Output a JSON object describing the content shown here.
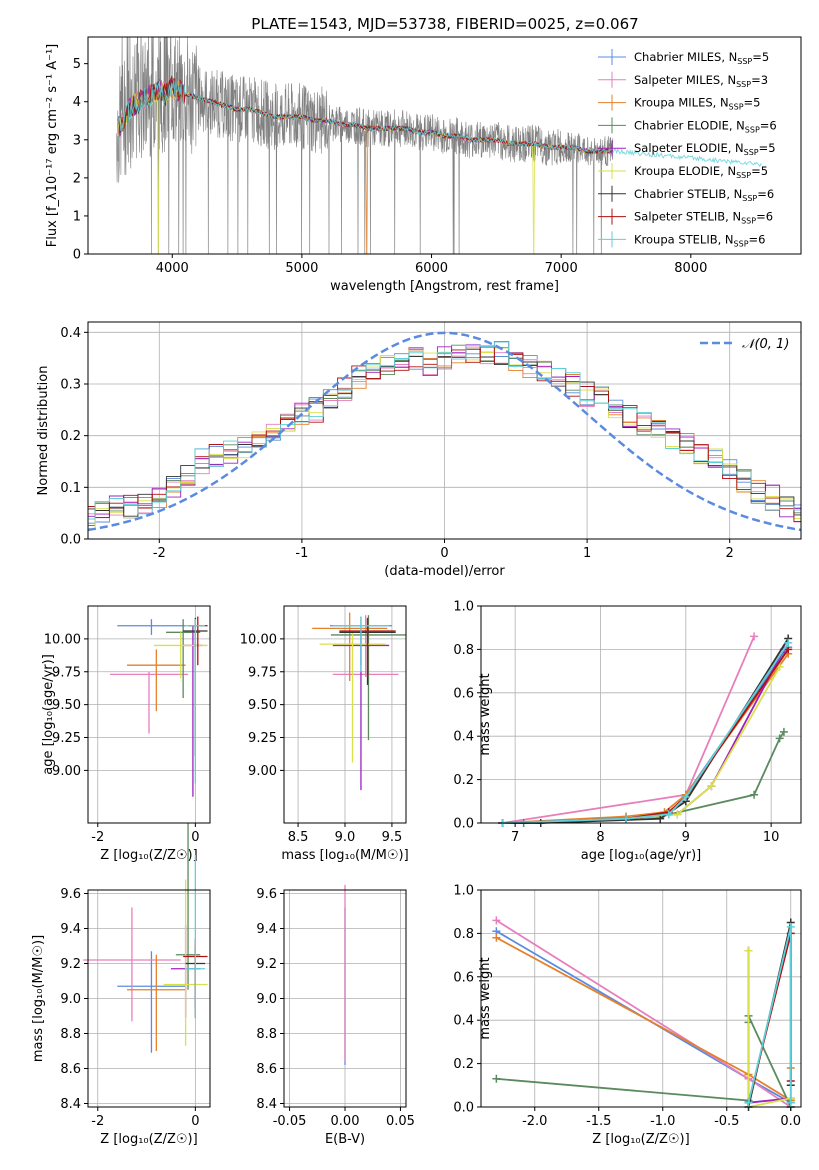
{
  "figure": {
    "title": "PLATE=1543, MJD=53738, FIBERID=0025, z=0.067"
  },
  "chart_data": [
    {
      "id": "spectrum",
      "type": "line",
      "title": "PLATE=1543, MJD=53738, FIBERID=0025, z=0.067",
      "xlabel": "wavelength [Angstrom, rest frame]",
      "ylabel": "Flux [f_λ10⁻¹⁷ erg cm⁻² s⁻¹ A⁻¹]",
      "xlim": [
        3350,
        8850
      ],
      "ylim": [
        0,
        5.7
      ],
      "xticks": [
        4000,
        5000,
        6000,
        7000,
        8000
      ],
      "yticks": [
        0,
        1,
        2,
        3,
        4,
        5
      ],
      "grid": false,
      "legend_position": "top-right",
      "observed": {
        "color": "#808080",
        "x": [
          3570,
          3600,
          3650,
          3700,
          3750,
          3800,
          3850,
          3900,
          3950,
          4000,
          4050,
          4100,
          4200,
          4300,
          4400,
          4500,
          4600,
          4700,
          4800,
          4900,
          5000,
          5100,
          5200,
          5300,
          5400,
          5500,
          5600,
          5700,
          5800,
          5900,
          6000,
          6100,
          6200,
          6300,
          6400,
          6500,
          6600,
          6700,
          6800,
          6900,
          7000,
          7100,
          7200,
          7300,
          7400
        ],
        "y": [
          3.2,
          3.4,
          3.7,
          3.9,
          4.0,
          4.1,
          4.2,
          4.3,
          4.2,
          4.4,
          4.3,
          4.2,
          4.1,
          4.0,
          3.9,
          3.8,
          3.8,
          3.7,
          3.6,
          3.6,
          3.6,
          3.5,
          3.5,
          3.4,
          3.4,
          3.3,
          3.3,
          3.3,
          3.3,
          3.2,
          3.2,
          3.1,
          3.1,
          3.0,
          3.0,
          3.0,
          2.9,
          2.9,
          2.9,
          2.8,
          2.8,
          2.8,
          2.7,
          2.7,
          2.7
        ]
      },
      "models": [
        {
          "name": "Chabrier MILES, N_SSP=5",
          "label_main": "Chabrier MILES, N",
          "label_sub": "SSP",
          "label_tail": "=5",
          "color": "#5b8be0"
        },
        {
          "name": "Salpeter MILES, N_SSP=3",
          "label_main": "Salpeter MILES, N",
          "label_sub": "SSP",
          "label_tail": "=3",
          "color": "#e77fbd"
        },
        {
          "name": "Kroupa MILES, N_SSP=5",
          "label_main": "Kroupa MILES, N",
          "label_sub": "SSP",
          "label_tail": "=5",
          "color": "#e5802b"
        },
        {
          "name": "Chabrier ELODIE, N_SSP=6",
          "label_main": "Chabrier ELODIE, N",
          "label_sub": "SSP",
          "label_tail": "=6",
          "color": "#5b8a5f"
        },
        {
          "name": "Salpeter ELODIE, N_SSP=5",
          "label_main": "Salpeter ELODIE, N",
          "label_sub": "SSP",
          "label_tail": "=5",
          "color": "#a020c0"
        },
        {
          "name": "Kroupa ELODIE, N_SSP=5",
          "label_main": "Kroupa ELODIE, N",
          "label_sub": "SSP",
          "label_tail": "=5",
          "color": "#d8e04a"
        },
        {
          "name": "Chabrier STELIB, N_SSP=6",
          "label_main": "Chabrier STELIB, N",
          "label_sub": "SSP",
          "label_tail": "=6",
          "color": "#333333"
        },
        {
          "name": "Salpeter STELIB, N_SSP=6",
          "label_main": "Salpeter STELIB, N",
          "label_sub": "SSP",
          "label_tail": "=6",
          "color": "#b01010"
        },
        {
          "name": "Kroupa STELIB, N_SSP=6",
          "label_main": "Kroupa STELIB, N",
          "label_sub": "SSP",
          "label_tail": "=6",
          "color": "#5fd0d8"
        }
      ]
    },
    {
      "id": "residuals",
      "type": "line",
      "xlabel": "(data-model)/error",
      "ylabel": "Normed distribution",
      "xlim": [
        -2.5,
        2.5
      ],
      "ylim": [
        0,
        0.42
      ],
      "xticks": [
        -2,
        -1,
        0,
        1,
        2
      ],
      "yticks": [
        0.0,
        0.1,
        0.2,
        0.3,
        0.4
      ],
      "grid": true,
      "legend_position": "top-right",
      "gaussian_label": "𝒩(0, 1)",
      "gaussian_color": "#5b8be0",
      "bin_width": 0.1,
      "histogram_profile": [
        0.04,
        0.05,
        0.06,
        0.06,
        0.07,
        0.08,
        0.1,
        0.12,
        0.15,
        0.16,
        0.17,
        0.18,
        0.19,
        0.2,
        0.22,
        0.24,
        0.25,
        0.27,
        0.29,
        0.31,
        0.32,
        0.34,
        0.35,
        0.35,
        0.34,
        0.35,
        0.36,
        0.36,
        0.35,
        0.36,
        0.35,
        0.33,
        0.33,
        0.31,
        0.3,
        0.28,
        0.27,
        0.25,
        0.24,
        0.22,
        0.21,
        0.2,
        0.18,
        0.17,
        0.15,
        0.13,
        0.11,
        0.09,
        0.08,
        0.06,
        0.05
      ]
    },
    {
      "id": "age-vs-Z",
      "type": "scatter",
      "xlabel": "Z [log₁₀(Z/Z☉)]",
      "ylabel": "age  [log₁₀(age/yr)]",
      "xlim": [
        -2.2,
        0.3
      ],
      "ylim": [
        8.6,
        10.25
      ],
      "xticks": [
        -2,
        0
      ],
      "yticks": [
        9.0,
        9.25,
        9.5,
        9.75,
        10.0
      ],
      "grid": true,
      "points": [
        {
          "x": -0.9,
          "y": 10.1,
          "xerr": 0.7,
          "yerr": [
            0.05,
            0.07
          ]
        },
        {
          "x": -0.95,
          "y": 9.73,
          "xerr": 0.8,
          "yerr": [
            0.02,
            0.45
          ]
        },
        {
          "x": -0.8,
          "y": 9.8,
          "xerr": 0.6,
          "yerr": [
            0.12,
            0.35
          ]
        },
        {
          "x": -0.25,
          "y": 10.05,
          "xerr": 0.35,
          "yerr": [
            0.1,
            0.5
          ]
        },
        {
          "x": -0.05,
          "y": 9.95,
          "xerr": 0.2,
          "yerr": [
            0.15,
            1.15
          ]
        },
        {
          "x": -0.3,
          "y": 9.95,
          "xerr": 0.55,
          "yerr": [
            0.1,
            0.25
          ]
        },
        {
          "x": 0.0,
          "y": 10.06,
          "xerr": 0.25,
          "yerr": [
            0.1,
            0.95
          ]
        },
        {
          "x": 0.05,
          "y": 10.1,
          "xerr": 0.2,
          "yerr": [
            0.07,
            0.3
          ]
        },
        {
          "x": 0.0,
          "y": 10.1,
          "xerr": 0.2,
          "yerr": [
            0.05,
            1.2
          ]
        }
      ]
    },
    {
      "id": "age-vs-mass",
      "type": "scatter",
      "xlabel": "mass [log₁₀(M/M☉)]",
      "ylabel": "",
      "xlim": [
        8.35,
        9.65
      ],
      "ylim": [
        8.6,
        10.25
      ],
      "xticks": [
        8.5,
        9.0,
        9.5
      ],
      "yticks": [
        9.0,
        9.25,
        9.5,
        9.75,
        10.0
      ],
      "grid": true,
      "points": [
        {
          "x": 9.17,
          "y": 10.1,
          "xerr": 0.33,
          "yerr": [
            0.07,
            0.3
          ]
        },
        {
          "x": 9.22,
          "y": 9.73,
          "xerr": 0.35,
          "yerr": [
            0.45,
            0.02
          ]
        },
        {
          "x": 9.05,
          "y": 10.08,
          "xerr": 0.4,
          "yerr": [
            0.12,
            0.4
          ]
        },
        {
          "x": 9.25,
          "y": 10.03,
          "xerr": 0.4,
          "yerr": [
            0.15,
            0.8
          ]
        },
        {
          "x": 9.17,
          "y": 9.95,
          "xerr": 0.3,
          "yerr": [
            0.12,
            1.1
          ]
        },
        {
          "x": 9.08,
          "y": 9.96,
          "xerr": 0.35,
          "yerr": [
            0.1,
            0.9
          ]
        },
        {
          "x": 9.24,
          "y": 10.05,
          "xerr": 0.3,
          "yerr": [
            0.1,
            0.4
          ]
        },
        {
          "x": 9.24,
          "y": 10.06,
          "xerr": 0.3,
          "yerr": [
            0.1,
            0.35
          ]
        },
        {
          "x": 9.17,
          "y": 10.1,
          "xerr": 0.3,
          "yerr": [
            0.07,
            0.35
          ]
        }
      ]
    },
    {
      "id": "mass-weight-vs-age",
      "type": "line",
      "xlabel": "age  [log₁₀(age/yr)]",
      "ylabel": "mass weight",
      "xlim": [
        6.6,
        10.35
      ],
      "ylim": [
        0,
        1.0
      ],
      "xticks": [
        7,
        8,
        9,
        10
      ],
      "yticks": [
        0.0,
        0.2,
        0.4,
        0.6,
        0.8,
        1.0
      ],
      "grid": true,
      "series": [
        {
          "name": "Chabrier MILES, N_SSP=5",
          "x": [
            6.85,
            8.3,
            8.8,
            9.0,
            10.2
          ],
          "y": [
            0.0,
            0.02,
            0.04,
            0.13,
            0.81
          ]
        },
        {
          "name": "Salpeter MILES, N_SSP=3",
          "x": [
            6.85,
            9.0,
            9.8
          ],
          "y": [
            0.0,
            0.13,
            0.86
          ]
        },
        {
          "name": "Kroupa MILES, N_SSP=5",
          "x": [
            6.85,
            8.3,
            8.75,
            9.0,
            10.2
          ],
          "y": [
            0.0,
            0.03,
            0.05,
            0.13,
            0.78
          ]
        },
        {
          "name": "Chabrier ELODIE, N_SSP=6",
          "x": [
            6.85,
            7.1,
            8.7,
            9.8,
            10.1,
            10.15
          ],
          "y": [
            0.0,
            0.0,
            0.03,
            0.13,
            0.39,
            0.42
          ]
        },
        {
          "name": "Salpeter ELODIE, N_SSP=5",
          "x": [
            6.85,
            8.3,
            8.9,
            9.3,
            10.15
          ],
          "y": [
            0.0,
            0.02,
            0.04,
            0.17,
            0.8
          ]
        },
        {
          "name": "Kroupa ELODIE, N_SSP=5",
          "x": [
            6.85,
            8.3,
            8.9,
            9.3,
            10.1
          ],
          "y": [
            0.0,
            0.02,
            0.04,
            0.17,
            0.72
          ]
        },
        {
          "name": "Chabrier STELIB, N_SSP=6",
          "x": [
            6.85,
            7.3,
            8.7,
            9.0,
            10.2
          ],
          "y": [
            0.0,
            0.0,
            0.02,
            0.1,
            0.85
          ]
        },
        {
          "name": "Salpeter STELIB, N_SSP=6",
          "x": [
            6.85,
            8.3,
            8.8,
            9.0,
            10.2
          ],
          "y": [
            0.0,
            0.02,
            0.05,
            0.12,
            0.8
          ]
        },
        {
          "name": "Kroupa STELIB, N_SSP=6",
          "x": [
            6.85,
            8.3,
            8.8,
            9.0,
            10.2
          ],
          "y": [
            0.0,
            0.02,
            0.04,
            0.12,
            0.83
          ]
        }
      ]
    },
    {
      "id": "mass-vs-Z",
      "type": "scatter",
      "xlabel": "Z [log₁₀(Z/Z☉)]",
      "ylabel": "mass [log₁₀(M/M☉)]",
      "xlim": [
        -2.2,
        0.3
      ],
      "ylim": [
        8.38,
        9.62
      ],
      "xticks": [
        -2,
        0
      ],
      "yticks": [
        8.4,
        8.6,
        8.8,
        9.0,
        9.2,
        9.4,
        9.6
      ],
      "grid": true,
      "points": [
        {
          "x": -0.9,
          "y": 9.07,
          "xerr": 0.7,
          "yerr": [
            0.2,
            0.38
          ]
        },
        {
          "x": -1.3,
          "y": 9.22,
          "xerr": 1.0,
          "yerr": [
            0.3,
            0.35
          ]
        },
        {
          "x": -0.8,
          "y": 9.05,
          "xerr": 0.6,
          "yerr": [
            0.2,
            0.35
          ]
        },
        {
          "x": -0.15,
          "y": 9.25,
          "xerr": 0.25,
          "yerr": [
            0.75,
            0.2
          ]
        },
        {
          "x": -0.2,
          "y": 9.17,
          "xerr": 0.3,
          "yerr": [
            0.25,
            0.28
          ]
        },
        {
          "x": -0.2,
          "y": 9.08,
          "xerr": 0.45,
          "yerr": [
            0.6,
            0.35
          ]
        },
        {
          "x": 0.0,
          "y": 9.2,
          "xerr": 0.2,
          "yerr": [
            0.1,
            0.25
          ]
        },
        {
          "x": 0.0,
          "y": 9.24,
          "xerr": 0.25,
          "yerr": [
            0.1,
            0.35
          ]
        },
        {
          "x": 0.0,
          "y": 9.17,
          "xerr": 0.2,
          "yerr": [
            0.65,
            0.28
          ]
        }
      ]
    },
    {
      "id": "mass-vs-EBV",
      "type": "scatter",
      "xlabel": "E(B-V)",
      "ylabel": "",
      "xlim": [
        -0.055,
        0.055
      ],
      "ylim": [
        8.38,
        9.62
      ],
      "xticks": [
        -0.05,
        0.0,
        0.05
      ],
      "yticks": [
        8.4,
        8.6,
        8.8,
        9.0,
        9.2,
        9.4,
        9.6
      ],
      "grid": true,
      "points": [
        {
          "x": 0.0,
          "y": 9.07,
          "xerr": 0.0,
          "yerr": [
            0.45,
            0.45
          ]
        },
        {
          "x": 0.0,
          "y": 9.1,
          "xerr": 0.0,
          "yerr": [
            0.55,
            0.46
          ]
        }
      ]
    },
    {
      "id": "mass-weight-vs-Z",
      "type": "line",
      "xlabel": "Z [log₁₀(Z/Z☉)]",
      "ylabel": "mass weight",
      "xlim": [
        -2.42,
        0.08
      ],
      "ylim": [
        0,
        1.0
      ],
      "xticks": [
        -2.0,
        -1.5,
        -1.0,
        -0.5,
        0.0
      ],
      "yticks": [
        0.0,
        0.2,
        0.4,
        0.6,
        0.8,
        1.0
      ],
      "grid": true,
      "series": [
        {
          "name": "Chabrier MILES, N_SSP=5",
          "x": [
            -2.3,
            -0.33,
            0.0,
            0.0
          ],
          "y": [
            0.81,
            0.13,
            0.02,
            0.04
          ]
        },
        {
          "name": "Salpeter MILES, N_SSP=3",
          "x": [
            -2.3,
            -0.33,
            0.0
          ],
          "y": [
            0.86,
            0.13,
            0.0
          ]
        },
        {
          "name": "Kroupa MILES, N_SSP=5",
          "x": [
            -2.3,
            -0.33,
            0.0,
            0.0
          ],
          "y": [
            0.78,
            0.15,
            0.03,
            0.18
          ]
        },
        {
          "name": "Chabrier ELODIE, N_SSP=6",
          "x": [
            -2.3,
            -0.33,
            -0.33,
            -0.33,
            0.0,
            0.0
          ],
          "y": [
            0.13,
            0.03,
            0.39,
            0.42,
            0.0,
            0.0
          ]
        },
        {
          "name": "Salpeter ELODIE, N_SSP=5",
          "x": [
            -0.33,
            -0.33,
            0.0
          ],
          "y": [
            0.72,
            0.02,
            0.04
          ]
        },
        {
          "name": "Kroupa ELODIE, N_SSP=5",
          "x": [
            -0.33,
            -0.33,
            0.0
          ],
          "y": [
            0.72,
            0.0,
            0.04
          ]
        },
        {
          "name": "Chabrier STELIB, N_SSP=6",
          "x": [
            -0.33,
            -0.33,
            0.0,
            0.0
          ],
          "y": [
            0.02,
            0.0,
            0.85,
            0.1
          ]
        },
        {
          "name": "Salpeter STELIB, N_SSP=6",
          "x": [
            -0.33,
            0.0,
            0.0
          ],
          "y": [
            0.02,
            0.8,
            0.12
          ]
        },
        {
          "name": "Kroupa STELIB, N_SSP=6",
          "x": [
            -0.33,
            0.0,
            0.0
          ],
          "y": [
            0.02,
            0.83,
            0.02
          ]
        }
      ]
    }
  ]
}
